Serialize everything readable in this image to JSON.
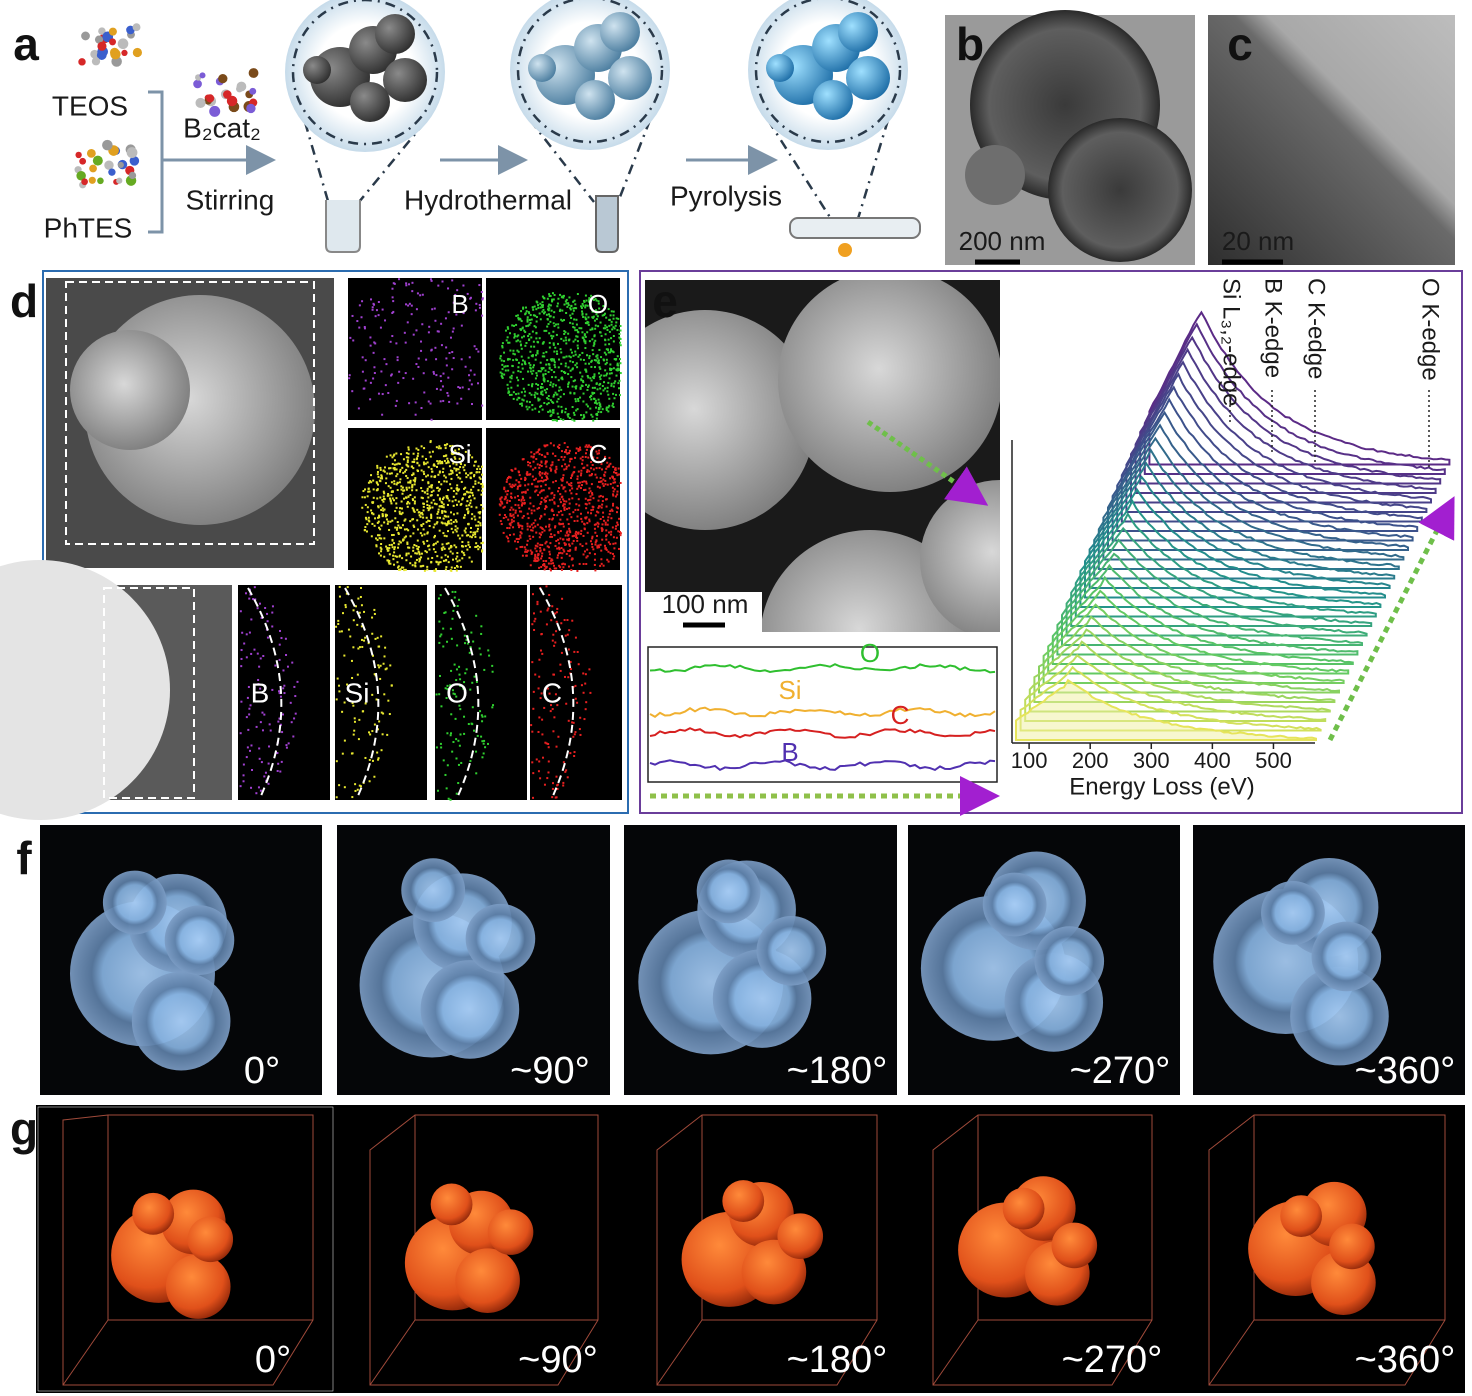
{
  "panel_a": {
    "label": "a",
    "precursors": [
      "TEOS",
      "PhTES"
    ],
    "reagent": "B₂cat₂",
    "steps": [
      "Stirring",
      "Hydrothermal",
      "Pyrolysis"
    ]
  },
  "panel_b": {
    "label": "b",
    "scale_bar": "200 nm"
  },
  "panel_c": {
    "label": "c",
    "scale_bar": "20 nm"
  },
  "panel_d": {
    "label": "d",
    "maps_top": [
      "B",
      "O",
      "Si",
      "C"
    ],
    "maps_bottom": [
      "B",
      "Si",
      "O",
      "C"
    ]
  },
  "panel_e": {
    "label": "e",
    "scale_bar": "100 nm",
    "profile_labels": [
      "O",
      "Si",
      "C",
      "B"
    ],
    "edges": [
      "Si L₃,₂-edge",
      "B K-edge",
      "C K-edge",
      "O K-edge"
    ],
    "x_axis_label": "Energy Loss (eV)",
    "xlim": [
      72,
      568
    ],
    "xticks": [
      100,
      200,
      300,
      400,
      500
    ]
  },
  "panel_f": {
    "label": "f",
    "angles": [
      "0°",
      "~90°",
      "~180°",
      "~270°",
      "~360°"
    ]
  },
  "panel_g": {
    "label": "g",
    "angles": [
      "0°",
      "~90°",
      "~180°",
      "~270°",
      "~360°"
    ]
  }
}
